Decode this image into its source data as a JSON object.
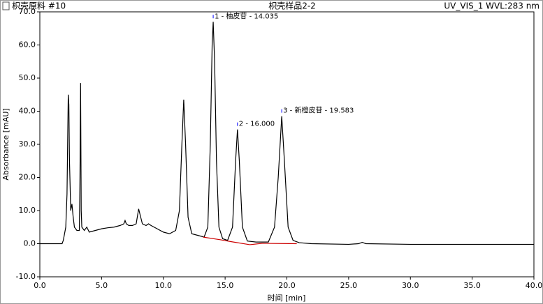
{
  "chart_data": {
    "type": "line",
    "title": "枳壳样品2-2",
    "sample_label": "枳壳原料 #10",
    "channel_label": "UV_VIS_1 WVL:283 nm",
    "x_label": "时间 [min]",
    "y_label": "Absorbance [mAU]",
    "xlim": [
      0,
      40
    ],
    "ylim": [
      -10,
      70
    ],
    "xticks": [
      {
        "value": 0,
        "label": "0.0"
      },
      {
        "value": 5,
        "label": "5.0"
      },
      {
        "value": 10,
        "label": "10.0"
      },
      {
        "value": 15,
        "label": "15.0"
      },
      {
        "value": 20,
        "label": "20.0"
      },
      {
        "value": 25,
        "label": "25.0"
      },
      {
        "value": 30,
        "label": "30.0"
      },
      {
        "value": 35,
        "label": "35.0"
      },
      {
        "value": 40,
        "label": "40.0"
      }
    ],
    "yticks": [
      {
        "value": -10,
        "label": "-10.0"
      },
      {
        "value": 0,
        "label": "0.0"
      },
      {
        "value": 10,
        "label": "10.0"
      },
      {
        "value": 20,
        "label": "20.0"
      },
      {
        "value": 30,
        "label": "30.0"
      },
      {
        "value": 40,
        "label": "40.0"
      },
      {
        "value": 50,
        "label": "50.0"
      },
      {
        "value": 60,
        "label": "60.0"
      },
      {
        "value": 70,
        "label": "70.0"
      }
    ],
    "series": [
      {
        "color": "#000000",
        "x": [
          0,
          1.8,
          1.9,
          2.0,
          2.1,
          2.2,
          2.3,
          2.35,
          2.4,
          2.5,
          2.6,
          2.7,
          2.8,
          3.0,
          3.2,
          3.25,
          3.3,
          3.35,
          3.4,
          3.6,
          3.8,
          4.0,
          4.5,
          5.0,
          5.5,
          6.0,
          6.5,
          6.8,
          6.9,
          7.0,
          7.2,
          7.5,
          7.8,
          8.0,
          8.1,
          8.3,
          8.6,
          8.8,
          9.0,
          9.5,
          10,
          10.5,
          11.0,
          11.3,
          11.5,
          11.65,
          11.8,
          12.0,
          12.3,
          12.8,
          13.3,
          13.6,
          13.8,
          13.95,
          14.035,
          14.15,
          14.3,
          14.5,
          14.8,
          15.2,
          15.6,
          15.85,
          16.0,
          16.15,
          16.4,
          16.8,
          17.5,
          18.5,
          19.0,
          19.3,
          19.583,
          19.8,
          20.1,
          20.5,
          21,
          22,
          25,
          25.8,
          26.1,
          26.4,
          30,
          35,
          40
        ],
        "values": [
          0,
          0,
          1,
          3,
          5,
          15,
          45,
          42,
          25,
          10,
          12,
          8,
          5,
          4,
          4,
          20,
          48.5,
          10,
          5,
          4,
          5,
          3.5,
          4,
          4.5,
          4.8,
          5,
          5.5,
          6,
          7,
          6,
          5.5,
          5.5,
          6,
          10.5,
          9,
          6,
          5.5,
          6,
          5.5,
          4.5,
          3.5,
          3,
          4,
          10,
          30,
          43.5,
          30,
          8,
          3,
          2.5,
          2,
          5,
          30,
          60,
          67,
          55,
          25,
          5,
          1.5,
          1,
          5,
          25,
          34.5,
          25,
          5,
          0.8,
          0.5,
          0.5,
          5,
          20,
          38.5,
          25,
          5,
          1,
          0.3,
          0,
          -0.2,
          0,
          0.4,
          0,
          -0.2,
          -0.2,
          -0.2
        ]
      },
      {
        "color": "#cc0000",
        "x": [
          13.2,
          14.6,
          15.5,
          17.0,
          18.0,
          20.8
        ],
        "values": [
          2.0,
          1.2,
          0.6,
          -0.3,
          0.1,
          0.0
        ]
      }
    ],
    "annotations": [
      {
        "text": "1 - 柚皮苷 - 14.035",
        "x": 14.035,
        "y": 67
      },
      {
        "text": "2 - 16.000",
        "x": 16.0,
        "y": 34.5
      },
      {
        "text": "3 - 新橙皮苷 - 19.583",
        "x": 19.583,
        "y": 38.5
      }
    ]
  }
}
